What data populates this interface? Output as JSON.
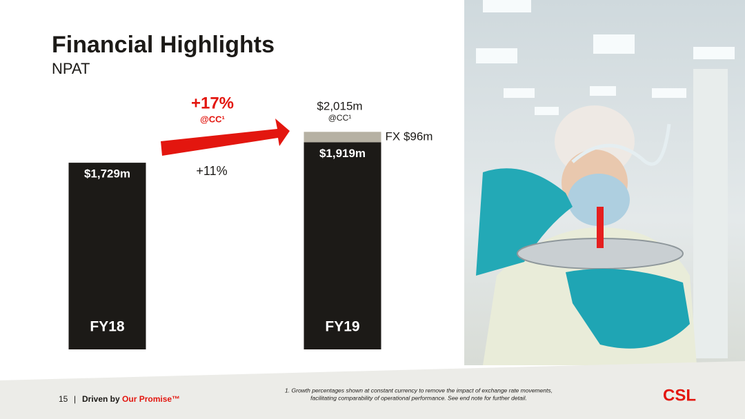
{
  "chart_data": {
    "type": "bar",
    "title": "Financial Highlights",
    "subtitle": "NPAT",
    "categories": [
      "FY18",
      "FY19"
    ],
    "series": [
      {
        "color": "#1c1a17",
        "values": [
          1729,
          1919
        ],
        "value_labels": [
          "$1,729m",
          "$1,919m"
        ]
      },
      {
        "color": "#b6b1a3",
        "values": [
          null,
          96
        ],
        "value_labels": [
          null,
          "FX $96m"
        ]
      }
    ],
    "totals": [
      null,
      2015
    ],
    "total_labels": [
      null,
      "$2,015m"
    ],
    "total_note": "@CC¹",
    "growth": {
      "label": "+17%",
      "note": "@CC¹",
      "color": "#e3160f",
      "secondary": "+11%"
    },
    "ylim": [
      0,
      2400
    ]
  },
  "footer": {
    "page": "15",
    "separator": "|",
    "tagline": "Driven by",
    "tagline_highlight": "Our Promise™",
    "footnote_lines": [
      "1. Growth percentages shown at constant currency to remove the impact of exchange rate movements,",
      "facilitating comparability of operational performance. See end note for further detail."
    ],
    "logo": "CSL"
  }
}
